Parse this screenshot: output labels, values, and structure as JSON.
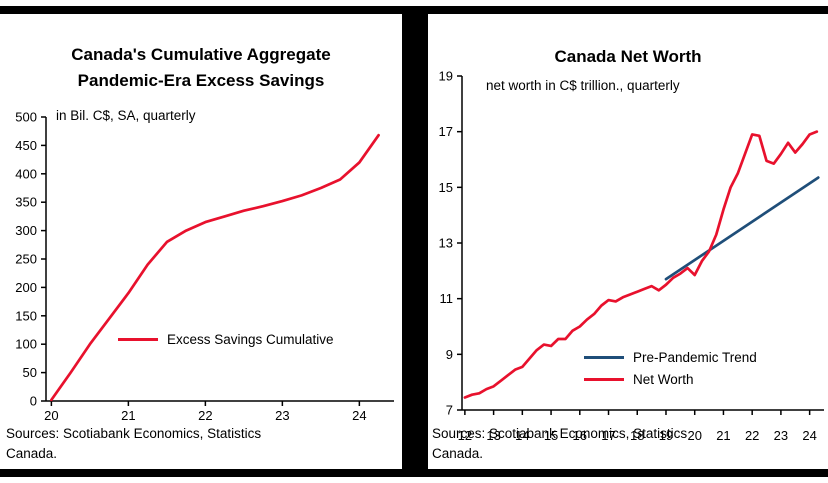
{
  "page": {
    "background": "#ffffff",
    "border_color": "#000000"
  },
  "chart_data": [
    {
      "type": "line",
      "title": "Canada's Cumulative Aggregate Pandemic-Era Excess Savings",
      "title_lines": [
        "Canada's Cumulative Aggregate",
        "Pandemic-Era Excess Savings"
      ],
      "subtitle": "in Bil. C$, SA, quarterly",
      "xlabel": "",
      "ylabel": "",
      "xlim": [
        19.93,
        24.45
      ],
      "ylim": [
        0,
        500
      ],
      "xticks": [
        20,
        21,
        22,
        23,
        24
      ],
      "yticks": [
        0,
        50,
        100,
        150,
        200,
        250,
        300,
        350,
        400,
        450,
        500
      ],
      "grid": false,
      "legend_position": "center right inside",
      "source": "Sources: Scotiabank Economics, Statistics Canada.",
      "series": [
        {
          "name": "Excess Savings Cumulative",
          "color": "#e8112d",
          "x": [
            20.0,
            20.25,
            20.5,
            20.75,
            21.0,
            21.25,
            21.5,
            21.75,
            22.0,
            22.25,
            22.5,
            22.75,
            23.0,
            23.25,
            23.5,
            23.75,
            24.0,
            24.25
          ],
          "y": [
            2,
            50,
            100,
            145,
            190,
            240,
            280,
            300,
            315,
            325,
            335,
            343,
            352,
            362,
            375,
            390,
            420,
            468
          ]
        }
      ]
    },
    {
      "type": "line",
      "title": "Canada Net Worth",
      "subtitle": "net worth in C$ trillion., quarterly",
      "xlabel": "",
      "ylabel": "",
      "xlim": [
        11.9,
        24.5
      ],
      "ylim": [
        7,
        19
      ],
      "xticks": [
        12,
        13,
        14,
        15,
        16,
        17,
        18,
        19,
        20,
        21,
        22,
        23,
        24
      ],
      "yticks": [
        7,
        9,
        11,
        13,
        15,
        17,
        19
      ],
      "grid": false,
      "legend_position": "lower right inside",
      "source": "Sources: Scotiabank Economics, Statistics Canada.",
      "series": [
        {
          "name": "Pre-Pandemic Trend",
          "color": "#1f4e79",
          "x": [
            19.0,
            24.3
          ],
          "y": [
            11.7,
            15.35
          ]
        },
        {
          "name": "Net Worth",
          "color": "#e8112d",
          "x": [
            12.0,
            12.25,
            12.5,
            12.75,
            13.0,
            13.25,
            13.5,
            13.75,
            14.0,
            14.25,
            14.5,
            14.75,
            15.0,
            15.25,
            15.5,
            15.75,
            16.0,
            16.25,
            16.5,
            16.75,
            17.0,
            17.25,
            17.5,
            17.75,
            18.0,
            18.25,
            18.5,
            18.75,
            19.0,
            19.25,
            19.5,
            19.75,
            20.0,
            20.25,
            20.5,
            20.75,
            21.0,
            21.25,
            21.5,
            21.75,
            22.0,
            22.25,
            22.5,
            22.75,
            23.0,
            23.25,
            23.5,
            23.75,
            24.0,
            24.25
          ],
          "y": [
            7.45,
            7.55,
            7.6,
            7.75,
            7.85,
            8.05,
            8.25,
            8.45,
            8.55,
            8.85,
            9.15,
            9.35,
            9.3,
            9.55,
            9.55,
            9.85,
            10.0,
            10.25,
            10.45,
            10.75,
            10.95,
            10.9,
            11.05,
            11.15,
            11.25,
            11.35,
            11.45,
            11.3,
            11.5,
            11.75,
            11.9,
            12.1,
            11.85,
            12.35,
            12.7,
            13.3,
            14.2,
            15.0,
            15.5,
            16.2,
            16.9,
            16.85,
            15.95,
            15.85,
            16.2,
            16.6,
            16.25,
            16.55,
            16.9,
            17.0
          ]
        }
      ]
    }
  ]
}
